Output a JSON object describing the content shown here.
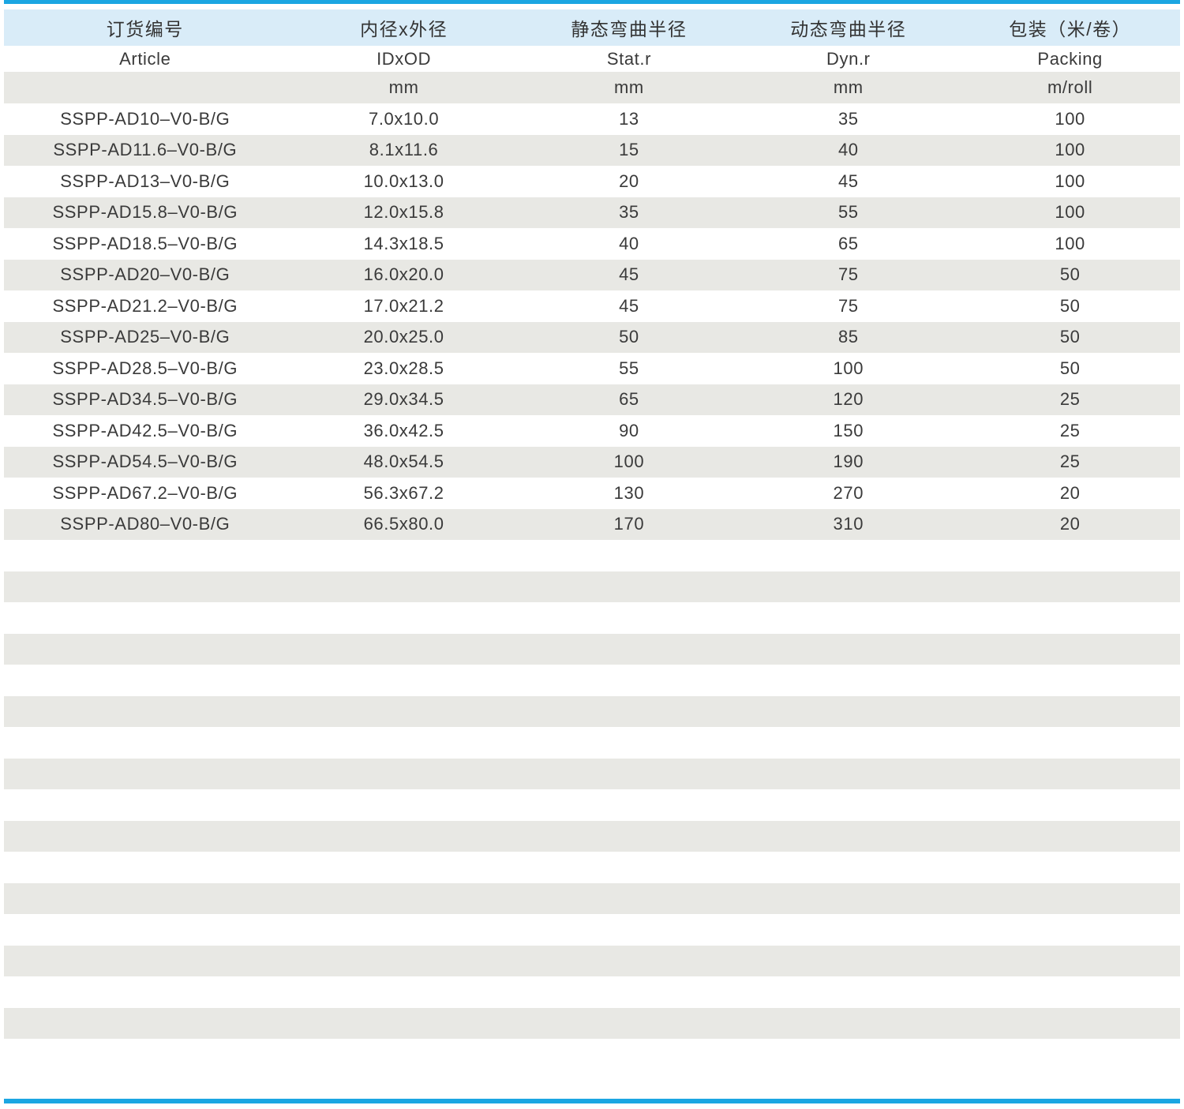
{
  "colors": {
    "accent": "#1ba6e2",
    "header_bg": "#d9ecf8",
    "stripe_gray": "#e8e8e4",
    "text": "#3a3a3a"
  },
  "table": {
    "columns": [
      {
        "key": "article",
        "zh": "订货编号",
        "en": "Article",
        "unit": ""
      },
      {
        "key": "idxod",
        "zh": "内径x外径",
        "en": "IDxOD",
        "unit": "mm"
      },
      {
        "key": "stat-r",
        "zh": "静态弯曲半径",
        "en": "Stat.r",
        "unit": "mm"
      },
      {
        "key": "dyn-r",
        "zh": "动态弯曲半径",
        "en": "Dyn.r",
        "unit": "mm"
      },
      {
        "key": "packing",
        "zh": "包装（米/卷）",
        "en": "Packing",
        "unit": "m/roll"
      }
    ],
    "rows": [
      [
        "SSPP-AD10–V0-B/G",
        "7.0x10.0",
        "13",
        "35",
        "100"
      ],
      [
        "SSPP-AD11.6–V0-B/G",
        "8.1x11.6",
        "15",
        "40",
        "100"
      ],
      [
        "SSPP-AD13–V0-B/G",
        "10.0x13.0",
        "20",
        "45",
        "100"
      ],
      [
        "SSPP-AD15.8–V0-B/G",
        "12.0x15.8",
        "35",
        "55",
        "100"
      ],
      [
        "SSPP-AD18.5–V0-B/G",
        "14.3x18.5",
        "40",
        "65",
        "100"
      ],
      [
        "SSPP-AD20–V0-B/G",
        "16.0x20.0",
        "45",
        "75",
        "50"
      ],
      [
        "SSPP-AD21.2–V0-B/G",
        "17.0x21.2",
        "45",
        "75",
        "50"
      ],
      [
        "SSPP-AD25–V0-B/G",
        "20.0x25.0",
        "50",
        "85",
        "50"
      ],
      [
        "SSPP-AD28.5–V0-B/G",
        "23.0x28.5",
        "55",
        "100",
        "50"
      ],
      [
        "SSPP-AD34.5–V0-B/G",
        "29.0x34.5",
        "65",
        "120",
        "25"
      ],
      [
        "SSPP-AD42.5–V0-B/G",
        "36.0x42.5",
        "90",
        "150",
        "25"
      ],
      [
        "SSPP-AD54.5–V0-B/G",
        "48.0x54.5",
        "100",
        "190",
        "25"
      ],
      [
        "SSPP-AD67.2–V0-B/G",
        "56.3x67.2",
        "130",
        "270",
        "20"
      ],
      [
        "SSPP-AD80–V0-B/G",
        "66.5x80.0",
        "170",
        "310",
        "20"
      ]
    ],
    "empty_row_count": 16
  }
}
